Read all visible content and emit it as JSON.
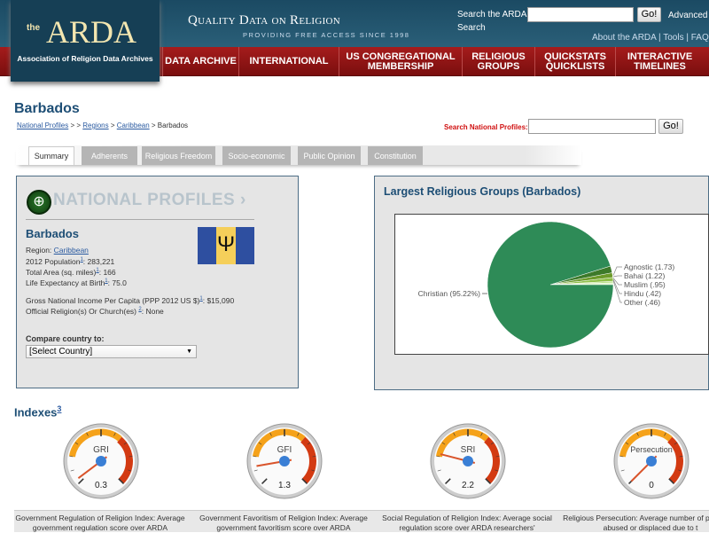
{
  "header": {
    "logo_the": "the",
    "logo_name": "ARDA",
    "logo_sub": "Association of Religion Data Archives",
    "tagline": "Quality Data on Religion",
    "tagline_sub": "PROVIDING FREE ACCESS SINCE 1998",
    "search_label": "Search the ARDA",
    "search_value": "",
    "go": "Go!",
    "advanced": "Advanced",
    "search_word": "Search",
    "top_links": "About the ARDA | Tools | FAQs"
  },
  "nav": [
    {
      "label": "DATA ARCHIVE"
    },
    {
      "label": "INTERNATIONAL"
    },
    {
      "label": "US CONGREGATIONAL MEMBERSHIP"
    },
    {
      "label": "RELIGIOUS GROUPS"
    },
    {
      "label": "QUICKSTATS QUICKLISTS"
    },
    {
      "label": "INTERACTIVE TIMELINES"
    }
  ],
  "page": {
    "title": "Barbados",
    "breadcrumb": {
      "national_profiles": "National Profiles",
      "sep1": " > > ",
      "regions": "Regions",
      "sep2": " > ",
      "caribbean": "Caribbean",
      "current": " > Barbados"
    },
    "search_np_label": "Search National Profiles:",
    "search_np_value": "",
    "go": "Go!"
  },
  "tabs": [
    {
      "label": "Summary",
      "active": true
    },
    {
      "label": "Adherents"
    },
    {
      "label": "Religious Freedom"
    },
    {
      "label": "Socio-economic"
    },
    {
      "label": "Public Opinion"
    },
    {
      "label": "Constitution"
    }
  ],
  "profile": {
    "banner": "NATIONAL PROFILES ›",
    "country": "Barbados",
    "region_label": "Region: ",
    "region": "Caribbean",
    "population_label": "2012 Population",
    "population": ": 283,221",
    "area_label": "Total Area (sq. miles)",
    "area": ": 166",
    "life_label": "Life Expectancy at Birth",
    "life": ": 75.0",
    "gni_label": "Gross National Income Per Capita (PPP 2012 US $)",
    "gni": ": $15,090",
    "official_label": "Official Religion(s) Or Church(es) ",
    "official": ": None",
    "fn1": "1",
    "fn2": "2",
    "compare_label": "Compare country to:",
    "compare_value": "[Select Country]",
    "flag_colors": [
      "#2e4fa0",
      "#f5cf5a",
      "#2e4fa0"
    ]
  },
  "religions": {
    "title": "Largest Religious Groups (Barbados)",
    "chart_data": {
      "type": "pie",
      "slices": [
        {
          "label": "Christian (95.22%)",
          "value": 95.22,
          "color": "#2e8b57"
        },
        {
          "label": "Agnostic (1.73)",
          "value": 1.73,
          "color": "#3d7a2a"
        },
        {
          "label": "Bahai (1.22)",
          "value": 1.22,
          "color": "#6c9a2a"
        },
        {
          "label": "Muslim (.95)",
          "value": 0.95,
          "color": "#8fbf4a"
        },
        {
          "label": "Hindu (.42)",
          "value": 0.42,
          "color": "#b9e08a"
        },
        {
          "label": "Other (.46)",
          "value": 0.46,
          "color": "#d9f5c0"
        }
      ]
    }
  },
  "indexes": {
    "title": "Indexes",
    "fn": "3",
    "gauges": [
      {
        "label": "GRI",
        "value": 0.3,
        "display": "0.3",
        "desc": "Government Regulation of Religion Index: Average government regulation score over ARDA"
      },
      {
        "label": "GFI",
        "value": 1.3,
        "display": "1.3",
        "desc": "Government Favoritism of Religion Index: Average government favoritism score over ARDA"
      },
      {
        "label": "SRI",
        "value": 2.2,
        "display": "2.2",
        "desc": "Social Regulation of Religion Index: Average social regulation score over ARDA researchers'"
      },
      {
        "label": "Persecution",
        "value": 0,
        "display": "0",
        "desc": "Religious Persecution: Average number of physically abused or displaced due to t"
      }
    ]
  }
}
